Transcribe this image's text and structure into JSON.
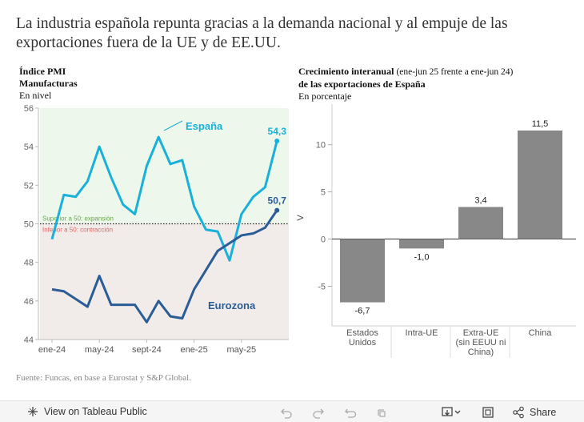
{
  "headline": "La industria española repunta gracias a la demanda nacional y al empuje de las exportaciones fuera de la UE y de EE.UU.",
  "charts": {
    "pmi": {
      "title_line1": "Índice PMI",
      "title_line2": "Manufacturas",
      "unit": "En nivel"
    },
    "exports": {
      "title_bold1": "Crecimiento interanual",
      "title_light": "(ene-jun 25 frente a ene-jun 24)",
      "title_bold2": "de las exportaciones de España",
      "unit": "En porcentaje"
    }
  },
  "colors": {
    "spain": "#1ab1d8",
    "eurozone": "#2a5d96",
    "bar": "#888888",
    "above_zone": "#eef7ec",
    "below_zone": "#f1ebe9",
    "above_text": "#6aa84f",
    "below_text": "#e06666"
  },
  "chart_data": [
    {
      "type": "line",
      "x": [
        "ene-24",
        "feb-24",
        "mar-24",
        "abr-24",
        "may-24",
        "jun-24",
        "jul-24",
        "ago-24",
        "sept-24",
        "oct-24",
        "nov-24",
        "dic-24",
        "ene-25",
        "feb-25",
        "mar-25",
        "abr-25",
        "may-25",
        "jun-25",
        "jul-25",
        "ago-25"
      ],
      "xticks": [
        "ene-24",
        "may-24",
        "sept-24",
        "ene-25",
        "may-25"
      ],
      "yticks": [
        44,
        46,
        48,
        50,
        52,
        54,
        56
      ],
      "ylim": [
        44,
        56
      ],
      "series": [
        {
          "name": "España",
          "values": [
            49.2,
            51.5,
            51.4,
            52.2,
            54.0,
            52.4,
            51.0,
            50.5,
            53.0,
            54.5,
            53.1,
            53.3,
            50.9,
            49.7,
            49.6,
            48.1,
            50.5,
            51.4,
            51.9,
            54.3
          ],
          "end_label": "54,3"
        },
        {
          "name": "Eurozona",
          "values": [
            46.6,
            46.5,
            46.1,
            45.7,
            47.3,
            45.8,
            45.8,
            45.8,
            44.9,
            46.0,
            45.2,
            45.1,
            46.6,
            47.6,
            48.6,
            49.0,
            49.4,
            49.5,
            49.8,
            50.7
          ],
          "end_label": "50,7"
        }
      ],
      "threshold": 50,
      "above_label": "Superior a 50: expansión",
      "below_label": "Inferior a 50: contracción"
    },
    {
      "type": "bar",
      "categories": [
        {
          "lines": [
            "Estados",
            "Unidos"
          ]
        },
        {
          "lines": [
            "Intra-UE"
          ]
        },
        {
          "lines": [
            "Extra-UE",
            "(sin EEUU ni",
            "China)"
          ]
        },
        {
          "lines": [
            "China"
          ]
        }
      ],
      "values": [
        -6.7,
        -1.0,
        3.4,
        11.5
      ],
      "value_labels": [
        "-6,7",
        "-1,0",
        "3,4",
        "11,5"
      ],
      "yticks": [
        -5,
        0,
        5,
        10
      ],
      "ytick_labels": [
        "-5",
        "0",
        "5",
        "10"
      ],
      "ylim": [
        -9.2,
        14.3
      ],
      "y_axis_glyph": "V"
    }
  ],
  "footnote": "Fuente: Funcas, en base a Eurostat y S&P Global.",
  "toolbar": {
    "view_label": "View on Tableau Public",
    "share_label": "Share"
  }
}
